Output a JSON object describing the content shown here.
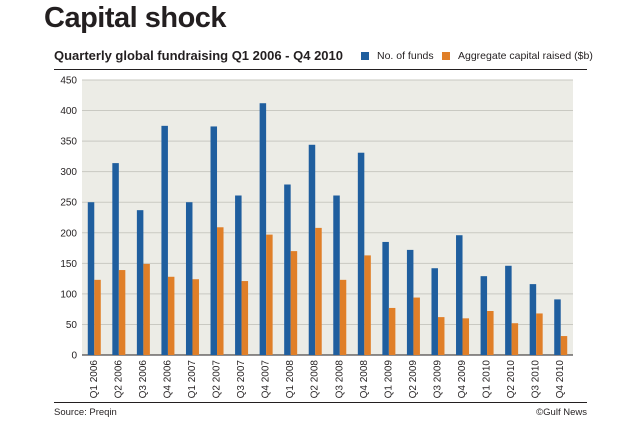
{
  "header": {
    "title": "Capital shock",
    "subtitle": "Quarterly global fundraising Q1 2006 - Q4 2010"
  },
  "footer": {
    "source": "Source: Preqin",
    "credit": "©Gulf News"
  },
  "colors": {
    "funds": "#1f5e9e",
    "capital": "#e07f28",
    "plot_background": "#ecece6",
    "gridline": "#c9c9c2"
  },
  "chart_data": {
    "type": "bar",
    "title": "Quarterly global fundraising Q1 2006 - Q4 2010",
    "xlabel": "",
    "ylabel": "",
    "ylim": [
      0,
      450
    ],
    "yticks": [
      0,
      50,
      100,
      150,
      200,
      250,
      300,
      350,
      400,
      450
    ],
    "grid": true,
    "legend_position": "top-right",
    "categories": [
      "Q1 2006",
      "Q2 2006",
      "Q3 2006",
      "Q4 2006",
      "Q1 2007",
      "Q2 2007",
      "Q3 2007",
      "Q4 2007",
      "Q1 2008",
      "Q2 2008",
      "Q3 2008",
      "Q4 2008",
      "Q1 2009",
      "Q2 2009",
      "Q3 2009",
      "Q4 2009",
      "Q1 2010",
      "Q2 2010",
      "Q3 2010",
      "Q4 2010"
    ],
    "series": [
      {
        "name": "No. of funds",
        "values": [
          250,
          314,
          237,
          375,
          250,
          374,
          261,
          412,
          279,
          344,
          261,
          331,
          185,
          172,
          142,
          196,
          129,
          146,
          116,
          91
        ]
      },
      {
        "name": "Aggregate capital raised ($b)",
        "values": [
          123,
          139,
          149,
          128,
          124,
          209,
          121,
          197,
          170,
          208,
          123,
          163,
          77,
          94,
          62,
          60,
          72,
          52,
          68,
          31
        ]
      }
    ]
  }
}
